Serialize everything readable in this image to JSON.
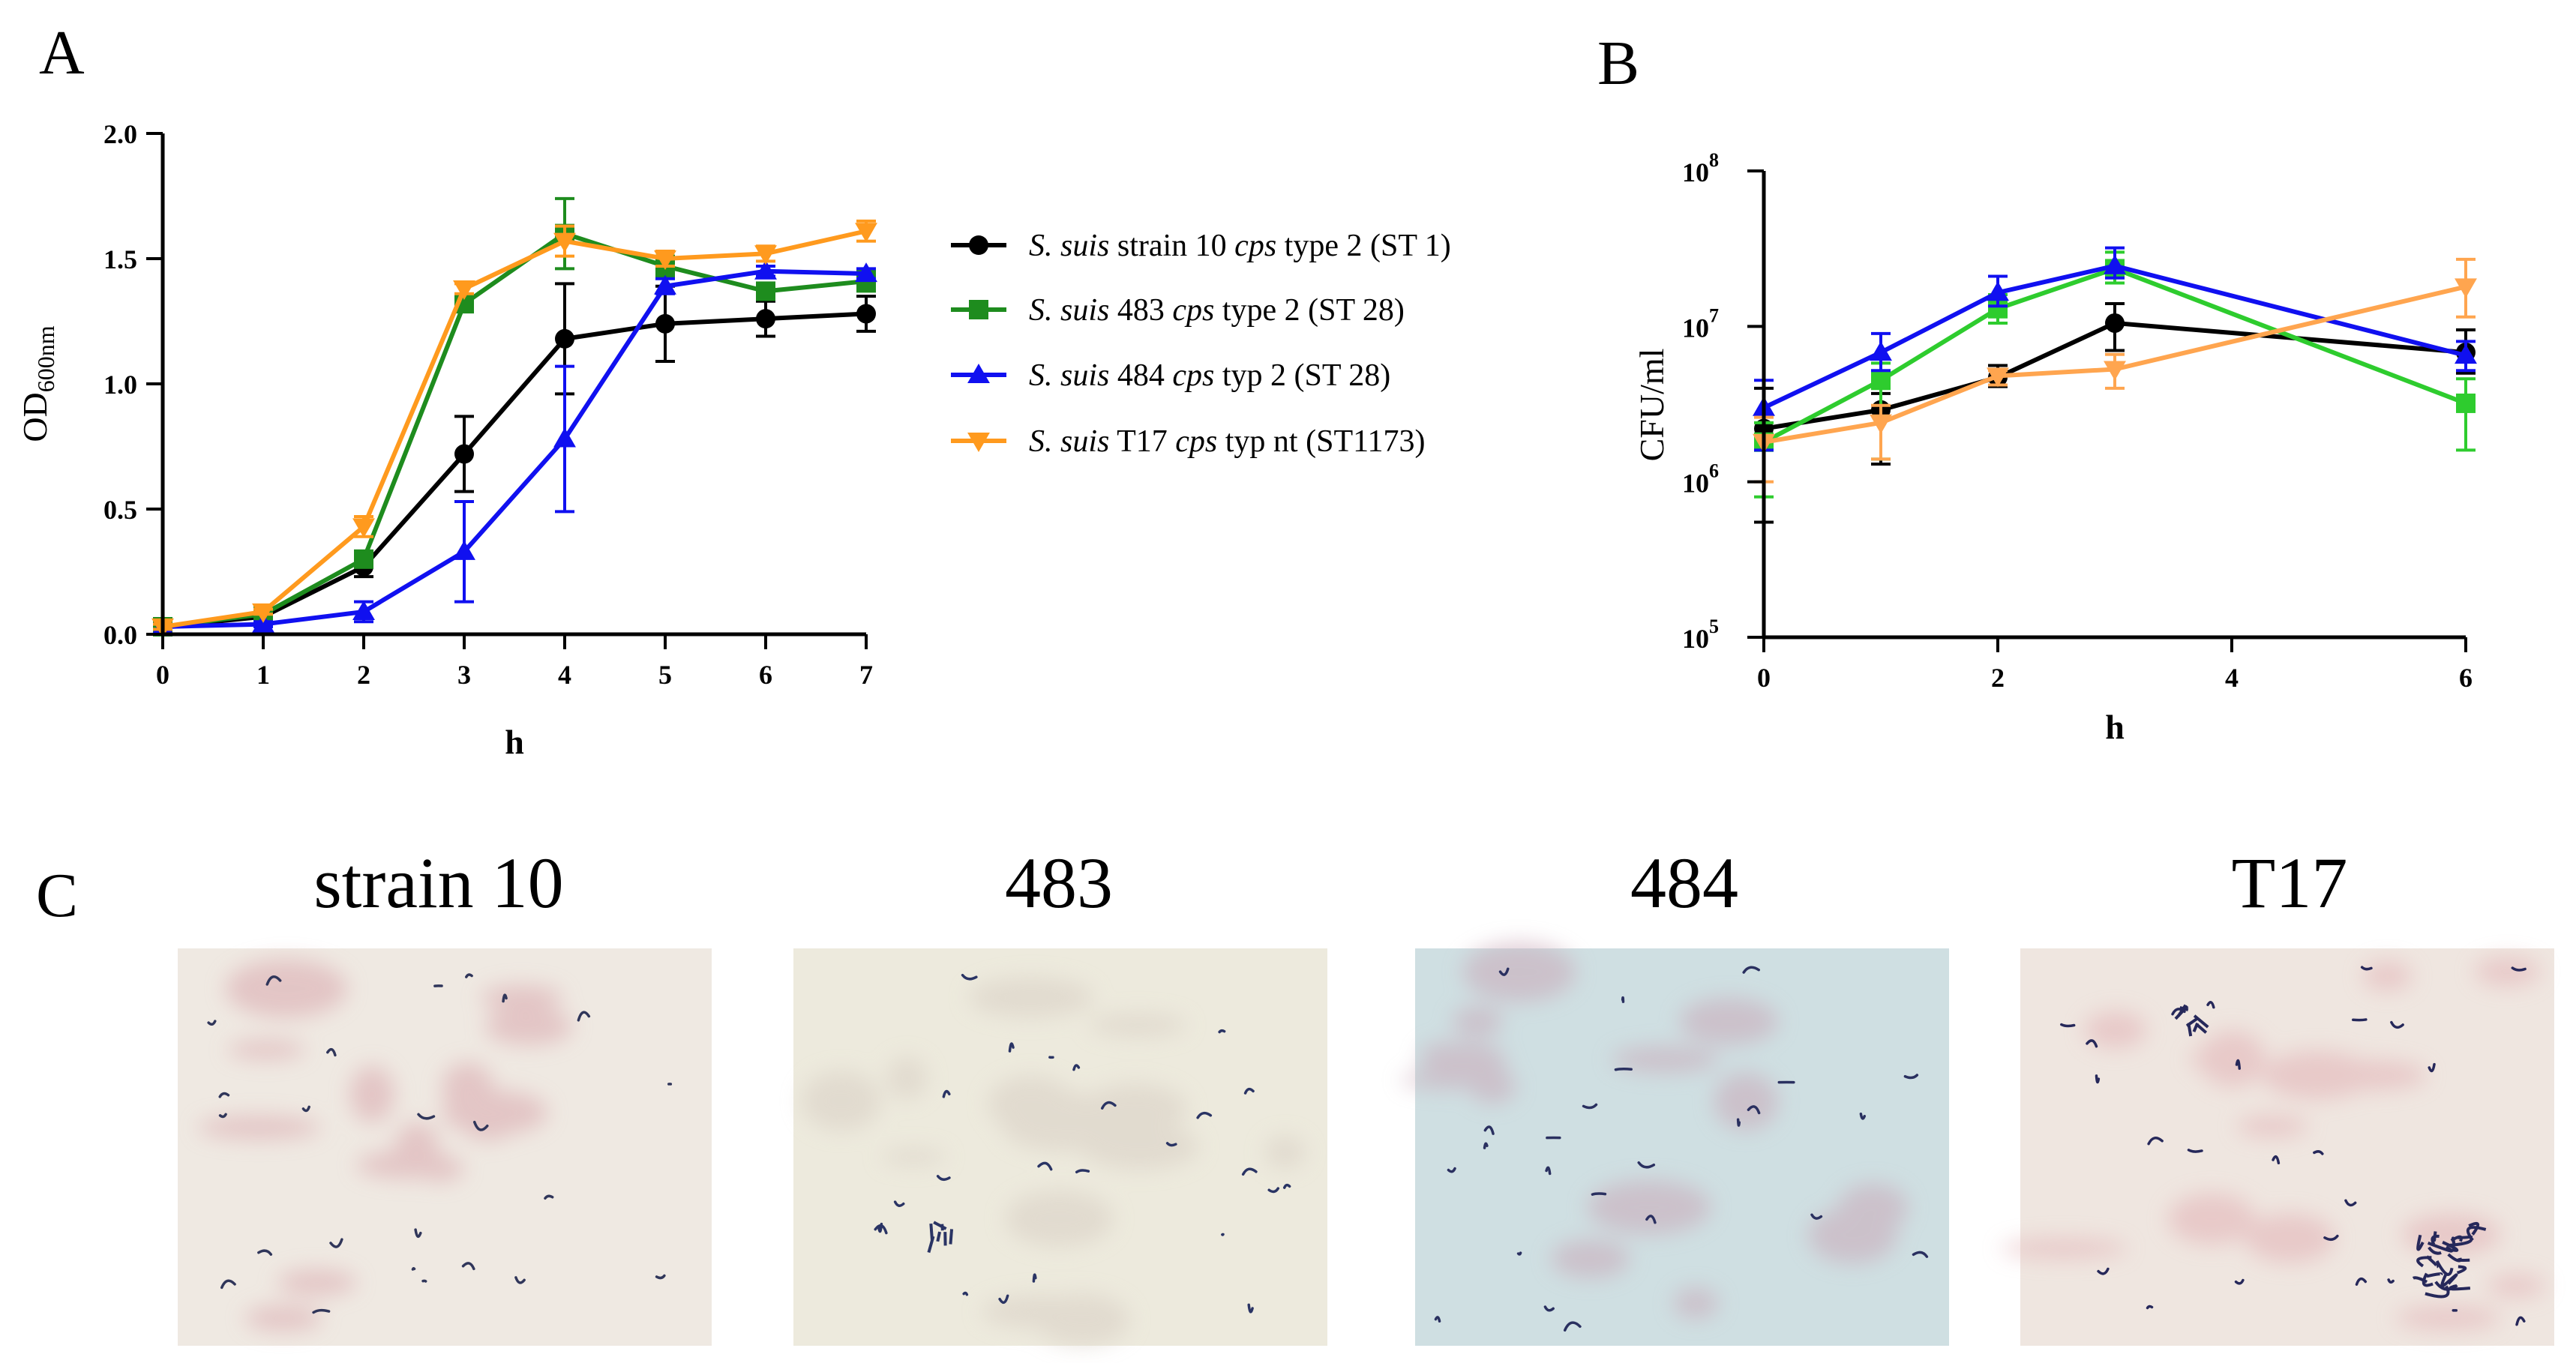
{
  "panels": {
    "A": "A",
    "B": "B",
    "C": "C"
  },
  "legend": [
    {
      "prefix": "S. suis",
      "parts": [
        {
          "t": " strain 10 ",
          "i": false
        },
        {
          "t": "cps",
          "i": true
        },
        {
          "t": " type 2 (ST 1)",
          "i": false
        }
      ],
      "color": "#000000",
      "marker": "circle"
    },
    {
      "prefix": "S. suis",
      "parts": [
        {
          "t": " 483 ",
          "i": false
        },
        {
          "t": "cps",
          "i": true
        },
        {
          "t": " type 2 (ST 28)",
          "i": false
        }
      ],
      "color": "#1E8C1E",
      "marker": "square"
    },
    {
      "prefix": "S. suis",
      "parts": [
        {
          "t": " 484 ",
          "i": false
        },
        {
          "t": "cps",
          "i": true
        },
        {
          "t": " typ 2 (ST 28)",
          "i": false
        }
      ],
      "color": "#1010F0",
      "marker": "triangle-up"
    },
    {
      "prefix": "S. suis",
      "parts": [
        {
          "t": " T17  ",
          "i": false
        },
        {
          "t": "cps",
          "i": true
        },
        {
          "t": " typ nt (ST1173)",
          "i": false
        }
      ],
      "color": "#FF9A1E",
      "marker": "triangle-down"
    }
  ],
  "chart_data": [
    {
      "id": "A",
      "type": "line",
      "xlabel": "h",
      "ylabel_main": "OD",
      "ylabel_sub": "600nm",
      "x": [
        0,
        1,
        2,
        3,
        4,
        5,
        6,
        7
      ],
      "xlim": [
        0,
        7
      ],
      "ylim": [
        0,
        2.0
      ],
      "xticks": [
        "0",
        "1",
        "2",
        "3",
        "4",
        "5",
        "6",
        "7"
      ],
      "yticks": [
        {
          "v": 0.0,
          "t": "0.0"
        },
        {
          "v": 0.5,
          "t": "0.5"
        },
        {
          "v": 1.0,
          "t": "1.0"
        },
        {
          "v": 1.5,
          "t": "1.5"
        },
        {
          "v": 2.0,
          "t": "2.0"
        }
      ],
      "series": [
        {
          "name": "S. suis strain 10 cps type 2 (ST 1)",
          "color": "#000000",
          "marker": "circle",
          "values": [
            0.03,
            0.07,
            0.27,
            0.72,
            1.18,
            1.24,
            1.26,
            1.28
          ],
          "err": [
            0.01,
            0.01,
            0.04,
            0.15,
            0.22,
            0.15,
            0.07,
            0.07
          ]
        },
        {
          "name": "S. suis 483 cps type 2 (ST 28)",
          "color": "#1E8C1E",
          "marker": "square",
          "values": [
            0.03,
            0.08,
            0.3,
            1.32,
            1.6,
            1.47,
            1.37,
            1.41
          ],
          "err": [
            0.01,
            0.01,
            0.03,
            0.03,
            0.14,
            0.04,
            0.03,
            0.04
          ]
        },
        {
          "name": "S. suis 484 cps typ 2 (ST 28)",
          "color": "#1010F0",
          "marker": "triangle-up",
          "values": [
            0.03,
            0.04,
            0.09,
            0.33,
            0.78,
            1.39,
            1.45,
            1.44
          ],
          "err": [
            0.01,
            0.01,
            0.04,
            0.2,
            0.29,
            0.03,
            0.02,
            0.02
          ]
        },
        {
          "name": "S. suis T17  cps typ nt (ST1173)",
          "color": "#FF9A1E",
          "marker": "triangle-down",
          "values": [
            0.03,
            0.09,
            0.43,
            1.38,
            1.57,
            1.5,
            1.52,
            1.61
          ],
          "err": [
            0.01,
            0.01,
            0.04,
            0.02,
            0.06,
            0.03,
            0.03,
            0.04
          ]
        }
      ]
    },
    {
      "id": "B",
      "type": "line",
      "yscale": "log",
      "xlabel": "h",
      "ylabel": "CFU/ml",
      "x": [
        0,
        1,
        2,
        3,
        6
      ],
      "xlim": [
        0,
        6
      ],
      "ylim": [
        100000,
        100000000
      ],
      "xticks": [
        {
          "v": 0,
          "t": "0"
        },
        {
          "v": 2,
          "t": "2"
        },
        {
          "v": 4,
          "t": "4"
        },
        {
          "v": 6,
          "t": "6"
        }
      ],
      "yticks": [
        {
          "v": 100000,
          "base": "10",
          "exp": "5"
        },
        {
          "v": 1000000,
          "base": "10",
          "exp": "6"
        },
        {
          "v": 10000000,
          "base": "10",
          "exp": "7"
        },
        {
          "v": 100000000,
          "base": "10",
          "exp": "8"
        }
      ],
      "series": [
        {
          "name": "S. suis strain 10",
          "color": "#000000",
          "marker": "circle",
          "values": [
            2200000,
            2900000,
            4700000,
            10500000,
            6800000
          ],
          "lo": [
            550000,
            1300000,
            4100000,
            7000000,
            5000000
          ],
          "hi": [
            4000000,
            3700000,
            5600000,
            14000000,
            9500000
          ]
        },
        {
          "name": "S. suis 483",
          "color": "#2ECC2E",
          "marker": "square",
          "values": [
            1800000,
            4500000,
            13000000,
            23500000,
            3200000
          ],
          "lo": [
            800000,
            1400000,
            10500000,
            19000000,
            1600000
          ],
          "hi": [
            2400000,
            5800000,
            16000000,
            30000000,
            4600000
          ]
        },
        {
          "name": "S. suis 484",
          "color": "#1010F0",
          "marker": "triangle-up",
          "values": [
            3000000,
            6800000,
            16500000,
            24500000,
            6500000
          ],
          "lo": [
            1600000,
            5200000,
            13500000,
            20500000,
            5200000
          ],
          "hi": [
            4500000,
            9000000,
            21000000,
            32000000,
            8000000
          ]
        },
        {
          "name": "S. suis T17",
          "color": "#FFA54F",
          "marker": "triangle-down",
          "values": [
            1800000,
            2400000,
            4800000,
            5300000,
            18000000
          ],
          "lo": [
            1000000,
            1400000,
            4200000,
            4000000,
            11500000
          ],
          "hi": [
            2600000,
            3100000,
            5200000,
            6600000,
            27000000
          ]
        }
      ]
    }
  ],
  "micrographs": [
    {
      "label": "strain 10",
      "bg": "#EFE9E2",
      "stain": "#D9A8AE",
      "cells": "#30365A"
    },
    {
      "label": "483",
      "bg": "#EDEADD",
      "stain": "#D8CFC4",
      "cells": "#2A3464"
    },
    {
      "label": "484",
      "bg": "#CFDFE2",
      "stain": "#C9A9B8",
      "cells": "#2A3060"
    },
    {
      "label": "T17",
      "bg": "#EFE6E0",
      "stain": "#E2B2B6",
      "cells": "#26285A"
    }
  ]
}
